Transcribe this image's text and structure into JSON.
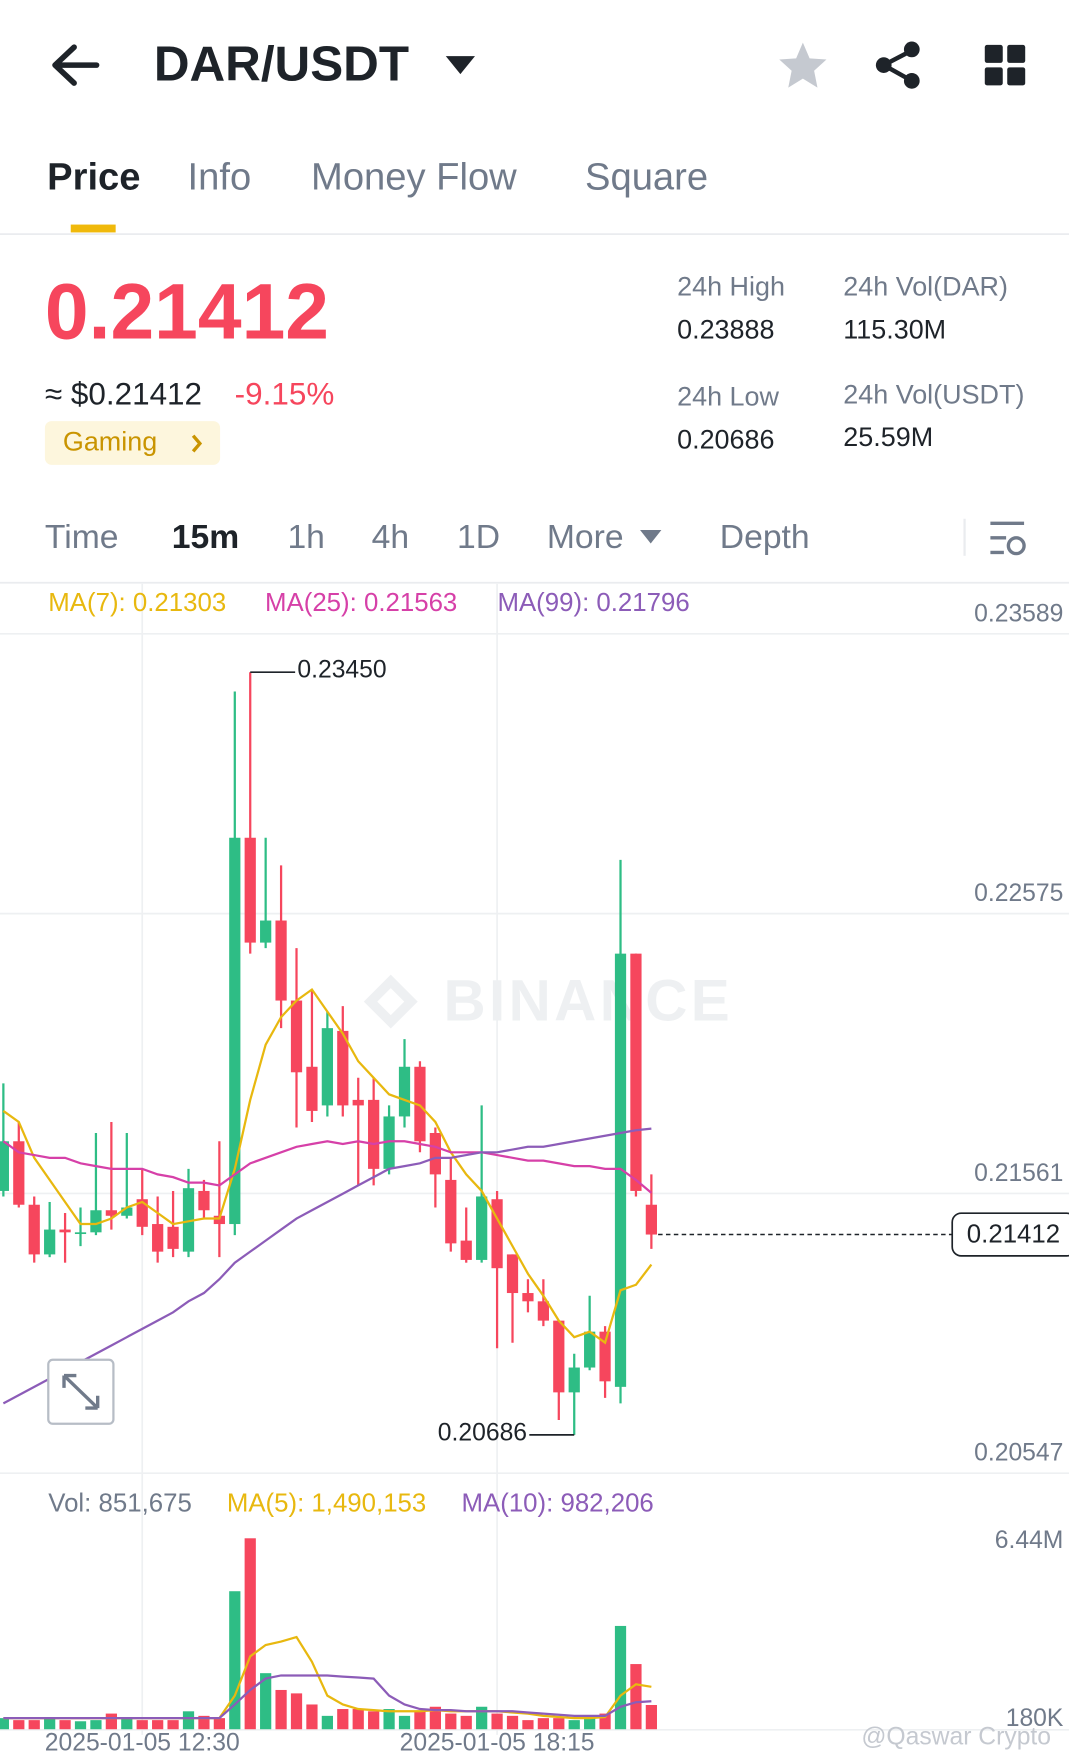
{
  "header": {
    "pair": "DAR/USDT"
  },
  "tabs": [
    "Price",
    "Info",
    "Money Flow",
    "Square"
  ],
  "ticker": {
    "price": "0.21412",
    "usd": "≈ $0.21412",
    "change": "-9.15%",
    "tag": "Gaming",
    "stats": [
      {
        "label": "24h High",
        "value": "0.23888"
      },
      {
        "label": "24h Vol(DAR)",
        "value": "115.30M"
      },
      {
        "label": "24h Low",
        "value": "0.20686"
      },
      {
        "label": "24h Vol(USDT)",
        "value": "25.59M"
      }
    ]
  },
  "intervals": [
    "Time",
    "15m",
    "1h",
    "4h",
    "1D",
    "More",
    "Depth"
  ],
  "chart_data": [
    {
      "type": "candlestick",
      "watermark": "BINANCE",
      "up_color": "#2ebd85",
      "down_color": "#f6465d",
      "categories": [
        null,
        null,
        null,
        null,
        null,
        null,
        null,
        null,
        null,
        "2025-01-05 12:30",
        null,
        null,
        null,
        null,
        null,
        null,
        null,
        null,
        null,
        null,
        null,
        null,
        null,
        null,
        null,
        null,
        null,
        null,
        null,
        null,
        null,
        null,
        "2025-01-05 18:15",
        null,
        null,
        null,
        null,
        null,
        null,
        null,
        null,
        null,
        null
      ],
      "open": [
        0.2157,
        0.2175,
        0.2152,
        0.2134,
        0.2143,
        0.2142,
        0.2142,
        0.215,
        0.2148,
        0.2154,
        0.2145,
        0.2144,
        0.2135,
        0.2157,
        0.2148,
        0.2145,
        0.2285,
        0.2247,
        0.2255,
        0.2226,
        0.2202,
        0.2188,
        0.2215,
        0.219,
        0.219,
        0.2165,
        0.2184,
        0.2202,
        0.2178,
        0.2161,
        0.2139,
        0.2132,
        0.2154,
        0.2134,
        0.212,
        0.2117,
        0.211,
        0.2084,
        0.2093,
        0.2106,
        0.2086,
        0.2243,
        0.2152
      ],
      "high": [
        0.2196,
        0.2182,
        0.2155,
        0.2153,
        0.2149,
        0.2151,
        0.2178,
        0.2182,
        0.2178,
        0.2165,
        0.2155,
        0.2157,
        0.2165,
        0.2161,
        0.2175,
        0.2338,
        0.2345,
        0.2285,
        0.2275,
        0.2245,
        0.223,
        0.2222,
        0.2224,
        0.2198,
        0.2198,
        0.2188,
        0.2212,
        0.2204,
        0.218,
        0.2169,
        0.2151,
        0.2188,
        0.2157,
        0.2134,
        0.2125,
        0.2125,
        0.211,
        0.2098,
        0.2119,
        0.2108,
        0.2277,
        0.2243,
        0.2163
      ],
      "low": [
        0.2155,
        0.2151,
        0.2131,
        0.2133,
        0.2131,
        0.2137,
        0.2141,
        0.2143,
        0.2147,
        0.2141,
        0.2131,
        0.2133,
        0.2133,
        0.2147,
        0.2133,
        0.2141,
        0.2243,
        0.2245,
        0.2216,
        0.218,
        0.2182,
        0.2184,
        0.2184,
        0.2159,
        0.2159,
        0.2163,
        0.218,
        0.2171,
        0.2151,
        0.2135,
        0.2131,
        0.2131,
        0.21,
        0.2102,
        0.2113,
        0.2108,
        0.2074,
        0.20686,
        0.2092,
        0.2082,
        0.208,
        0.2155,
        0.2136
      ],
      "close": [
        0.2175,
        0.2152,
        0.2134,
        0.2143,
        0.2142,
        0.2142,
        0.215,
        0.2148,
        0.2151,
        0.2144,
        0.2135,
        0.2136,
        0.2158,
        0.215,
        0.2145,
        0.2285,
        0.2247,
        0.2255,
        0.2226,
        0.22,
        0.2186,
        0.2216,
        0.2188,
        0.2188,
        0.2165,
        0.2184,
        0.2202,
        0.2175,
        0.2163,
        0.2138,
        0.2132,
        0.2155,
        0.2129,
        0.212,
        0.2117,
        0.211,
        0.2084,
        0.2093,
        0.2106,
        0.2088,
        0.2243,
        0.2157,
        0.21412
      ],
      "last_price_label": "0.21412",
      "annotations": [
        {
          "value": 0.2345,
          "label": "0.23450"
        },
        {
          "value": 0.20686,
          "label": "0.20686"
        }
      ],
      "series": [
        {
          "name": "MA(7): 0.21303",
          "color": "#e8b80f",
          "values": [
            0.2186,
            0.2182,
            0.2169,
            0.2161,
            0.2153,
            0.2145,
            0.2145,
            0.2147,
            0.2151,
            0.2153,
            0.2149,
            0.2145,
            0.2146,
            0.2147,
            0.2147,
            0.2165,
            0.219,
            0.221,
            0.222,
            0.2226,
            0.223,
            0.2222,
            0.2214,
            0.2204,
            0.2198,
            0.2192,
            0.219,
            0.2188,
            0.2182,
            0.2171,
            0.2163,
            0.2157,
            0.2147,
            0.2137,
            0.2127,
            0.2119,
            0.211,
            0.2104,
            0.2106,
            0.2102,
            0.2121,
            0.2123,
            0.21303
          ]
        },
        {
          "name": "MA(25): 0.21563",
          "color": "#d640a8",
          "values": [
            0.2175,
            0.2171,
            0.217,
            0.2169,
            0.2169,
            0.2167,
            0.2166,
            0.2165,
            0.2165,
            0.2165,
            0.2163,
            0.2162,
            0.216,
            0.216,
            0.2159,
            0.2163,
            0.2167,
            0.2169,
            0.2171,
            0.2173,
            0.2174,
            0.2175,
            0.2174,
            0.2175,
            0.2174,
            0.2175,
            0.2175,
            0.2174,
            0.2173,
            0.2171,
            0.2171,
            0.2171,
            0.217,
            0.2169,
            0.2168,
            0.2168,
            0.2167,
            0.2166,
            0.2166,
            0.2165,
            0.2165,
            0.2161,
            0.21563
          ]
        },
        {
          "name": "MA(99): 0.21796",
          "color": "#8c5cb8",
          "values": [
            0.208,
            0.2083,
            0.2086,
            0.2089,
            0.2092,
            0.2095,
            0.2098,
            0.2101,
            0.2104,
            0.2107,
            0.211,
            0.2113,
            0.2117,
            0.212,
            0.2125,
            0.2131,
            0.2135,
            0.2139,
            0.2143,
            0.2147,
            0.215,
            0.2153,
            0.2156,
            0.2159,
            0.2162,
            0.2165,
            0.2166,
            0.2167,
            0.2169,
            0.2169,
            0.217,
            0.2171,
            0.2171,
            0.2172,
            0.2173,
            0.2173,
            0.2174,
            0.2175,
            0.2176,
            0.2177,
            0.2178,
            0.2179,
            0.21796
          ]
        }
      ],
      "ylim": [
        0.20547,
        0.2377
      ],
      "yticks": [
        0.20547,
        0.21561,
        0.22575,
        0.23589
      ],
      "grid": true
    },
    {
      "type": "bar",
      "legend": "Vol: 851,675",
      "values": [
        390000,
        320000,
        320000,
        390000,
        320000,
        280000,
        320000,
        550000,
        390000,
        320000,
        320000,
        320000,
        630000,
        470000,
        390000,
        4850000,
        6710000,
        1970000,
        1380000,
        1260000,
        870000,
        470000,
        710000,
        710000,
        630000,
        710000,
        470000,
        630000,
        790000,
        550000,
        470000,
        790000,
        550000,
        470000,
        320000,
        390000,
        390000,
        320000,
        390000,
        550000,
        3630000,
        2290000,
        851675
      ],
      "series": [
        {
          "name": "MA(5): 1,490,153",
          "color": "#e8b80f",
          "values": [
            390000,
            390000,
            390000,
            390000,
            390000,
            390000,
            390000,
            390000,
            390000,
            390000,
            390000,
            390000,
            390000,
            390000,
            390000,
            1180000,
            2560000,
            2960000,
            3080000,
            3240000,
            2370000,
            1180000,
            870000,
            710000,
            670000,
            630000,
            630000,
            630000,
            670000,
            630000,
            630000,
            630000,
            630000,
            590000,
            550000,
            470000,
            430000,
            390000,
            390000,
            430000,
            1180000,
            1580000,
            1490153
          ]
        },
        {
          "name": "MA(10): 982,206",
          "color": "#8c5cb8",
          "values": [
            390000,
            390000,
            390000,
            390000,
            390000,
            390000,
            390000,
            390000,
            390000,
            390000,
            390000,
            390000,
            390000,
            390000,
            390000,
            870000,
            1380000,
            1780000,
            1890000,
            1890000,
            1890000,
            1890000,
            1850000,
            1820000,
            1780000,
            1180000,
            870000,
            710000,
            670000,
            670000,
            630000,
            630000,
            630000,
            630000,
            590000,
            550000,
            510000,
            470000,
            470000,
            470000,
            790000,
            950000,
            982206
          ]
        }
      ],
      "ylim": [
        0,
        7300000
      ],
      "yticks": [
        {
          "value": 180000,
          "label": "180K"
        },
        {
          "value": 6440000,
          "label": "6.44M"
        }
      ]
    }
  ],
  "watermark": "@Qaswar Crypto"
}
